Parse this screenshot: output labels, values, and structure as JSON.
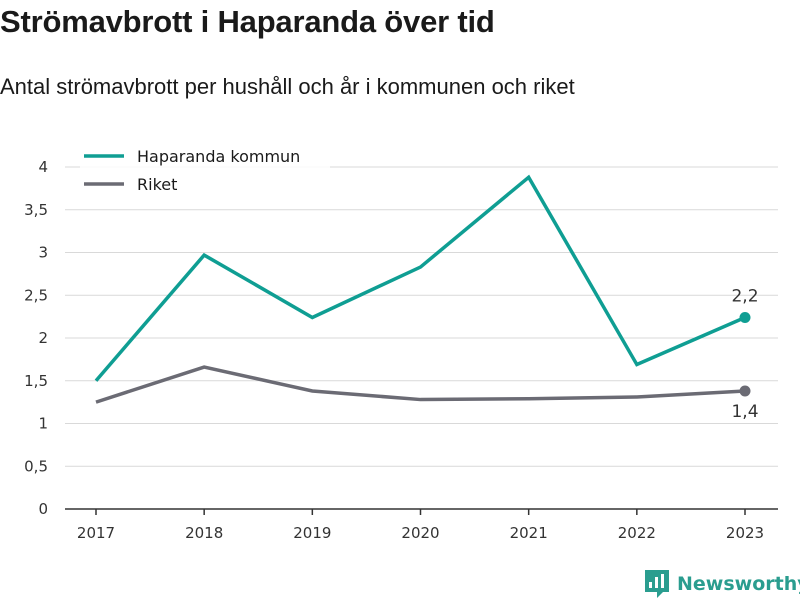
{
  "title": "Strömavbrott i Haparanda över tid",
  "subtitle": "Antal strömavbrott per hushåll och år i kommunen och riket",
  "brand": {
    "name": "Newsworthy",
    "icon": "newsworthy-logo-icon"
  },
  "colors": {
    "haparanda": "#0f9e93",
    "riket": "#6b6b74",
    "grid": "#d9d9d9",
    "axis": "#333333",
    "brand": "#2a9d8f"
  },
  "chart_data": {
    "type": "line",
    "x": [
      "2017",
      "2018",
      "2019",
      "2020",
      "2021",
      "2022",
      "2023"
    ],
    "ylim": [
      0,
      4
    ],
    "yticks": [
      "0",
      "0,5",
      "1",
      "1,5",
      "2",
      "2,5",
      "3",
      "3,5",
      "4"
    ],
    "ytick_values": [
      0,
      0.5,
      1,
      1.5,
      2,
      2.5,
      3,
      3.5,
      4
    ],
    "grid": true,
    "legend_position": "top-left",
    "series": [
      {
        "name": "Haparanda kommun",
        "values": [
          1.5,
          2.97,
          2.24,
          2.83,
          3.88,
          1.69,
          2.24
        ],
        "end_label": "2,2"
      },
      {
        "name": "Riket",
        "values": [
          1.25,
          1.66,
          1.38,
          1.28,
          1.29,
          1.31,
          1.38
        ],
        "end_label": "1,4"
      }
    ]
  }
}
